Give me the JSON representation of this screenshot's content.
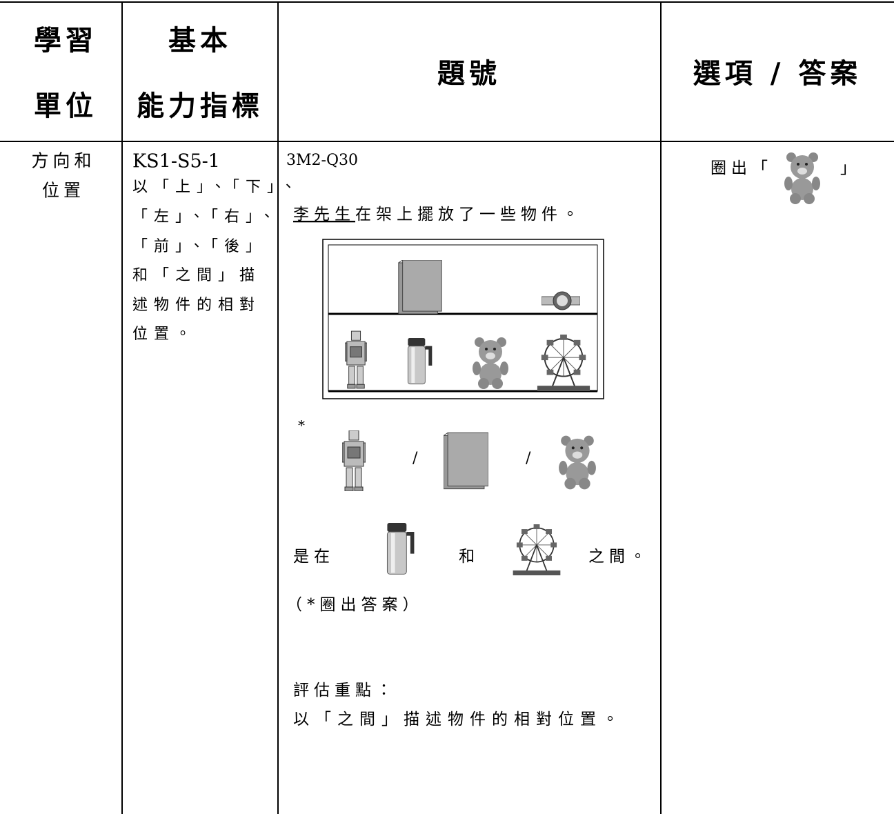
{
  "header": {
    "cells": [
      {
        "lines": [
          "學習",
          "單位"
        ]
      },
      {
        "lines": [
          "基本",
          "能力指標"
        ]
      },
      {
        "lines": [
          "題號"
        ]
      },
      {
        "lines": [
          "選項 / 答案"
        ]
      }
    ]
  },
  "row": {
    "unit": [
      "方向和",
      "位置"
    ],
    "indicator": {
      "code": "KS1-S5-1",
      "lines": [
        "以「上」、「下」、",
        "「左」、「右」、",
        "「前」、「後」",
        "和「之間」描",
        "述物件的相對",
        "位置。"
      ]
    },
    "question": {
      "id": "3M2-Q30",
      "name": "李先生",
      "intro": "在架上擺放了一些物件。",
      "marker": "*",
      "separators": [
        "/",
        "/"
      ],
      "stem_start": "是在",
      "stem_and": "和",
      "stem_end": "之間。",
      "note": "（*圈出答案）",
      "focus_title": "評估重點：",
      "focus_text": "以「之間」描述物件的相對位置。"
    },
    "answer": {
      "prefix": "圈出「",
      "suffix": "」"
    }
  }
}
